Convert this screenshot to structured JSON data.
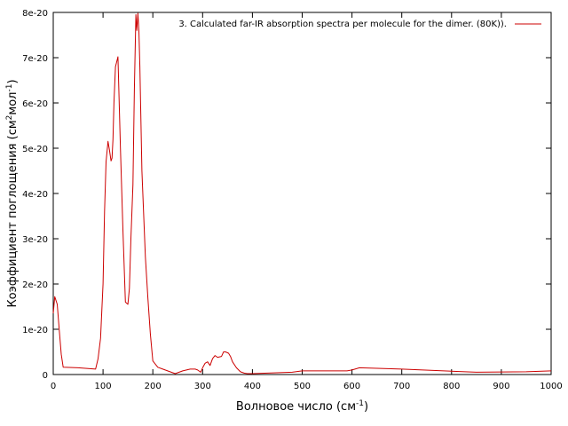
{
  "chart_data": {
    "type": "line",
    "title": "",
    "xlabel_main": "Волновое число (см",
    "xlabel_sup": "-1",
    "xlabel_end": ")",
    "ylabel_main": "Коэффициент поглощения (см",
    "ylabel_sup1": "2",
    "ylabel_mid": "мол",
    "ylabel_sup2": "-1",
    "ylabel_end": ")",
    "xlim": [
      0,
      1000
    ],
    "ylim": [
      0,
      8e-20
    ],
    "x_ticks": [
      0,
      100,
      200,
      300,
      400,
      500,
      600,
      700,
      800,
      900,
      1000
    ],
    "x_tick_labels": [
      "0",
      "100",
      "200",
      "300",
      "400",
      "500",
      "600",
      "700",
      "800",
      "900",
      "1000"
    ],
    "y_ticks": [
      0,
      1e-20,
      2e-20,
      3e-20,
      4e-20,
      5e-20,
      6e-20,
      7e-20,
      8e-20
    ],
    "y_tick_labels": [
      "0",
      "1e-20",
      "2e-20",
      "3e-20",
      "4e-20",
      "5e-20",
      "6e-20",
      "7e-20",
      "8e-20"
    ],
    "grid": false,
    "legend_position": "top-right",
    "series": [
      {
        "name": "3. Calculated far-IR absorption spectra per molecule for the dimer. (80K)).",
        "color": "#cc0000",
        "x": [
          0,
          3,
          8,
          12,
          16,
          20,
          50,
          85,
          90,
          95,
          100,
          103,
          106,
          110,
          113,
          116,
          118,
          120,
          122,
          125,
          130,
          135,
          140,
          145,
          150,
          153,
          156,
          160,
          163,
          166,
          168,
          170,
          172,
          174,
          178,
          185,
          190,
          195,
          200,
          210,
          220,
          245,
          260,
          275,
          285,
          290,
          296,
          300,
          305,
          310,
          315,
          320,
          325,
          330,
          338,
          342,
          346,
          352,
          356,
          360,
          368,
          376,
          384,
          390,
          400,
          480,
          500,
          590,
          600,
          615,
          700,
          850,
          950,
          1000
        ],
        "y": [
          1.35e-20,
          1.72e-20,
          1.55e-20,
          1e-20,
          4.5e-21,
          1.6e-21,
          1.5e-21,
          1.2e-21,
          3.5e-21,
          8e-21,
          2e-20,
          3.6e-20,
          4.7e-20,
          5.15e-20,
          4.95e-20,
          4.72e-20,
          4.78e-20,
          5.2e-20,
          6e-20,
          6.8e-20,
          7.02e-20,
          5e-20,
          3.2e-20,
          1.6e-20,
          1.55e-20,
          1.9e-20,
          3e-20,
          4.2e-20,
          6.3e-20,
          7.95e-20,
          7.6e-20,
          7.98e-20,
          7.6e-20,
          6.8e-20,
          4.5e-20,
          2.6e-20,
          1.7e-20,
          9e-21,
          3e-21,
          1.6e-21,
          1.2e-21,
          2e-22,
          8e-22,
          1.2e-21,
          1.2e-21,
          1e-21,
          5e-22,
          1.5e-21,
          2.5e-21,
          2.8e-21,
          2e-21,
          3.5e-21,
          4.2e-21,
          3.8e-21,
          4e-21,
          5e-21,
          5e-21,
          4.7e-21,
          4e-21,
          2.8e-21,
          1.5e-21,
          6e-22,
          3e-22,
          2e-22,
          2e-22,
          5e-22,
          8e-22,
          8e-22,
          1e-21,
          1.5e-21,
          1.2e-21,
          5e-22,
          6e-22,
          8e-22
        ]
      }
    ]
  }
}
